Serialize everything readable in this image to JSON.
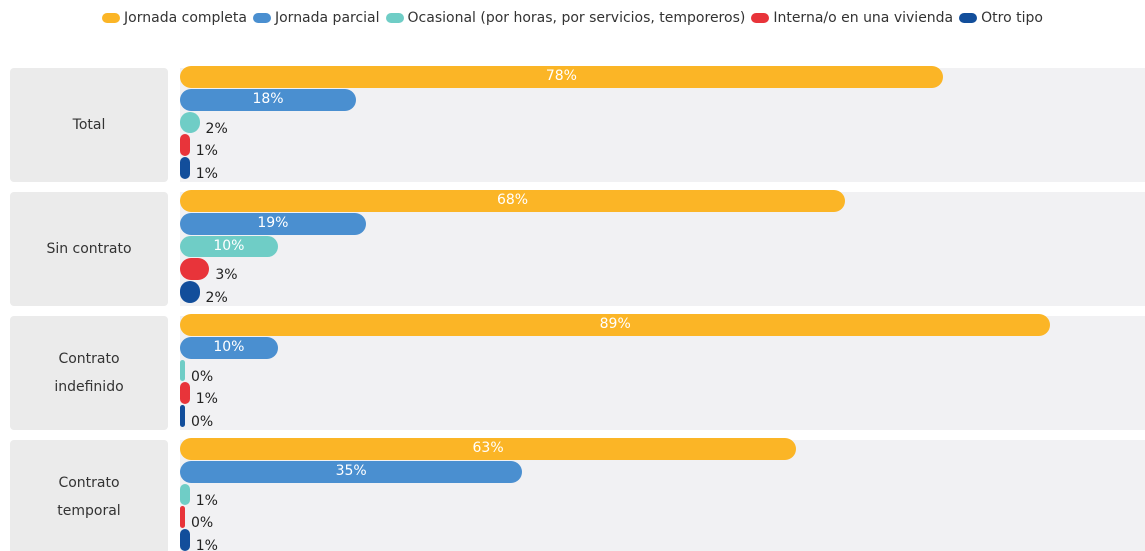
{
  "chart_data": {
    "type": "bar",
    "orientation": "horizontal",
    "categories": [
      "Total",
      "Sin contrato",
      "Contrato indefinido",
      "Contrato temporal"
    ],
    "series": [
      {
        "name": "Jornada completa",
        "color": "#fbb526",
        "values": [
          78,
          68,
          89,
          63
        ],
        "value_labels": [
          "78%",
          "68%",
          "89%",
          "63%"
        ]
      },
      {
        "name": "Jornada parcial",
        "color": "#4a8fd0",
        "values": [
          18,
          19,
          10,
          35
        ],
        "value_labels": [
          "18%",
          "19%",
          "10%",
          "35%"
        ]
      },
      {
        "name": "Ocasional (por horas, por servicios, temporeros)",
        "color": "#6fcdc6",
        "values": [
          2,
          10,
          0,
          1
        ],
        "value_labels": [
          "2%",
          "10%",
          "0%",
          "1%"
        ]
      },
      {
        "name": "Interna/o en una vivienda",
        "color": "#e8343a",
        "values": [
          1,
          3,
          1,
          0
        ],
        "value_labels": [
          "1%",
          "3%",
          "1%",
          "0%"
        ]
      },
      {
        "name": "Otro tipo",
        "color": "#124e9b",
        "values": [
          1,
          2,
          0,
          1
        ],
        "value_labels": [
          "1%",
          "2%",
          "0%",
          "1%"
        ]
      }
    ],
    "legend": "top"
  }
}
